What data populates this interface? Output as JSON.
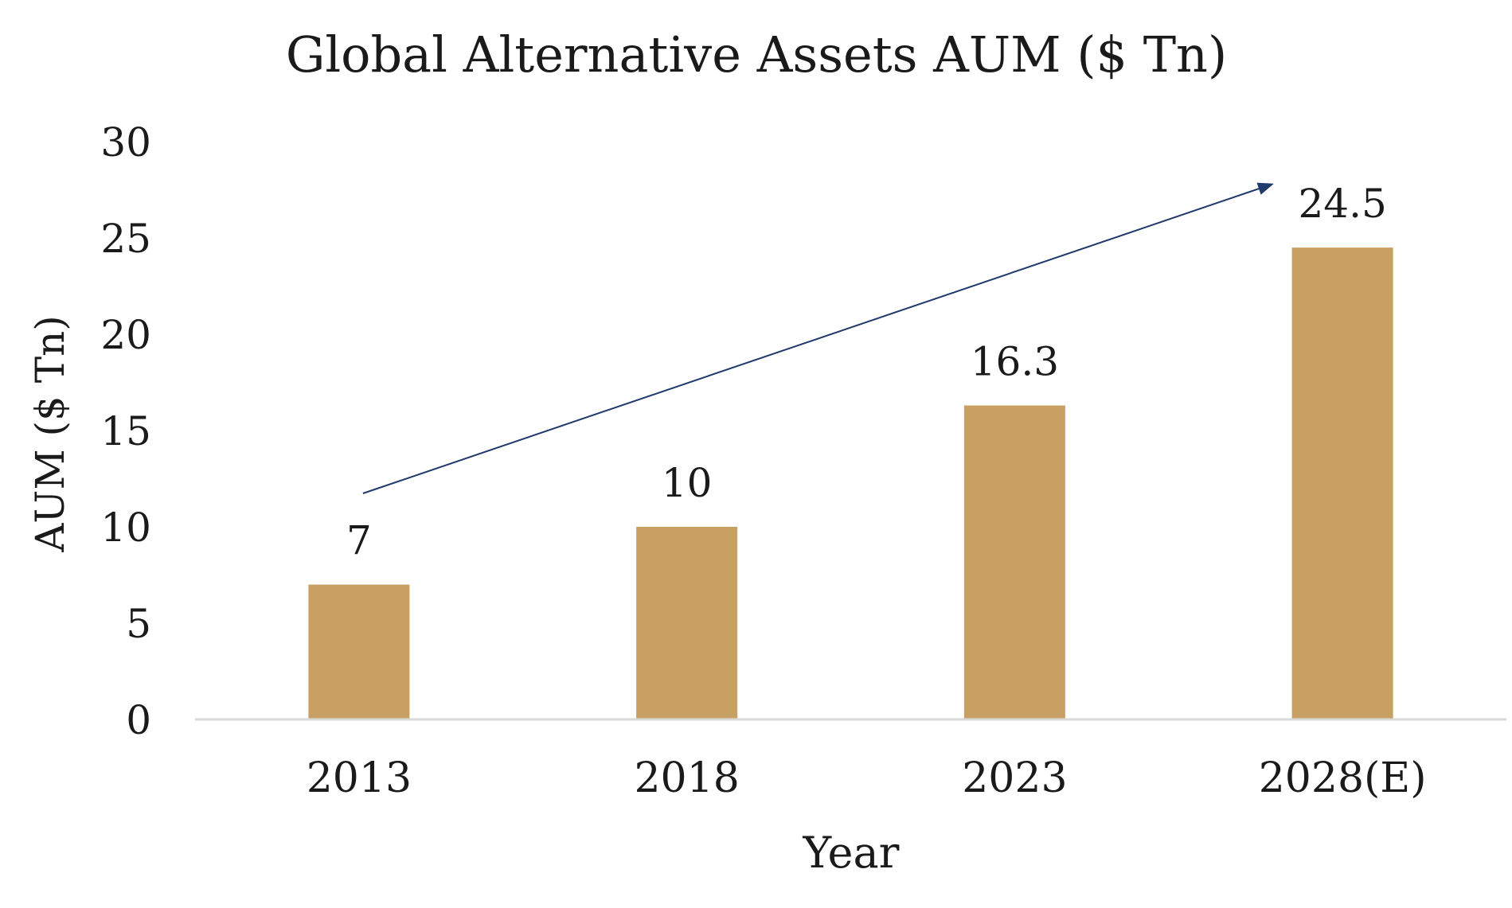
{
  "chart_data": {
    "type": "bar",
    "title": "Global Alternative Assets AUM ($ Tn)",
    "xlabel": "Year",
    "ylabel": "AUM ($ Tn)",
    "categories": [
      "2013",
      "2018",
      "2023",
      "2028(E)"
    ],
    "values": [
      7,
      10,
      16.3,
      24.5
    ],
    "value_labels": [
      "7",
      "10",
      "16.3",
      "24.5"
    ],
    "ylim": [
      0,
      30
    ],
    "yticks": [
      0,
      5,
      10,
      15,
      20,
      25,
      30
    ],
    "grid": false,
    "legend": "none",
    "colors": {
      "bar": "#C9A063",
      "trend_arrow": "#1F3A6B",
      "axis": "#D9D9D9",
      "text": "#1A1A1A"
    },
    "annotations": [
      {
        "type": "trend-arrow",
        "from_category": "2013",
        "to_category": "2028(E)"
      }
    ]
  }
}
